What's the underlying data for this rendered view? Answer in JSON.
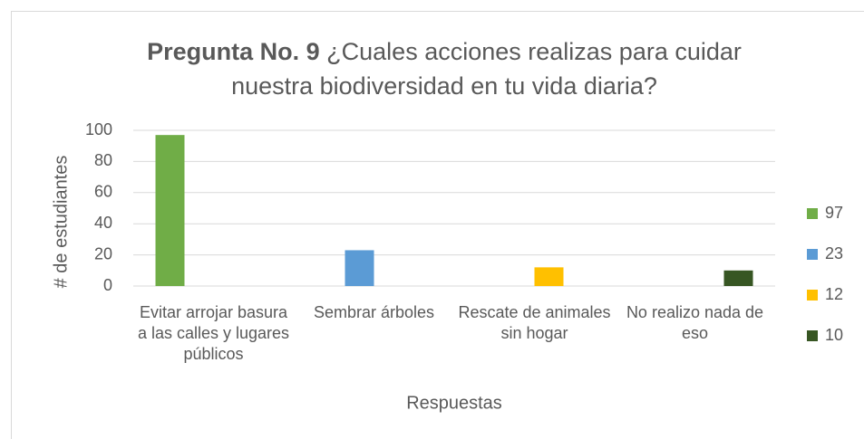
{
  "chart_data": {
    "type": "bar",
    "title_bold": "Pregunta No. 9",
    "title": "¿Cuales acciones realizas para cuidar nuestra biodiversidad en tu vida diaria?",
    "y_label": "# de estudiantes",
    "x_label": "Respuestas",
    "categories": [
      "Evitar arrojar basura a las calles y lugares públicos",
      "Sembrar árboles",
      "Rescate de animales sin hogar",
      "No realizo nada de eso"
    ],
    "series": [
      {
        "name": "97",
        "color": "#70ad47",
        "values": [
          97,
          null,
          null,
          null
        ]
      },
      {
        "name": "23",
        "color": "#5b9bd5",
        "values": [
          null,
          23,
          null,
          null
        ]
      },
      {
        "name": "12",
        "color": "#ffc000",
        "values": [
          null,
          null,
          12,
          null
        ]
      },
      {
        "name": "10",
        "color": "#375623",
        "values": [
          null,
          null,
          null,
          10
        ]
      }
    ],
    "ylim": [
      0,
      100
    ],
    "yticks": [
      0,
      20,
      40,
      60,
      80,
      100
    ],
    "grid": true,
    "legend": "right"
  }
}
